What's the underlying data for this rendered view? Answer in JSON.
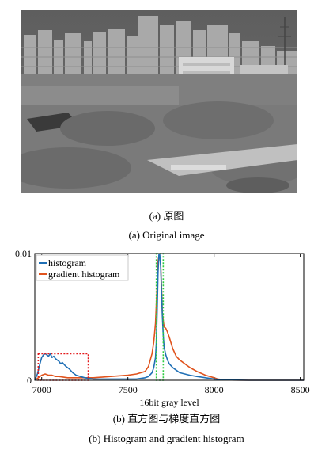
{
  "figure_a": {
    "caption_cn": "(a)  原图",
    "caption_en": "(a) Original image"
  },
  "figure_b": {
    "caption_cn": "(b)  直方图与梯度直方图",
    "caption_en": "(b) Histogram and gradient histogram"
  },
  "chart_data": {
    "type": "line",
    "title": "",
    "xlabel": "16bit gray level",
    "ylabel": "",
    "xlim": [
      6960,
      8520
    ],
    "ylim": [
      0,
      0.01
    ],
    "xticks": [
      "7000",
      "7500",
      "8000",
      "8500"
    ],
    "yticks": [
      "0",
      "0.01"
    ],
    "legend": {
      "placement": "top-left",
      "entries": [
        "histogram",
        "gradient histogram"
      ]
    },
    "colors": {
      "histogram": "#1f6fb5",
      "gradient histogram": "#e0531d",
      "box_red": "#e31a1c",
      "box_green": "#2ecc40"
    },
    "series": [
      {
        "name": "histogram",
        "x": [
          6960,
          6975,
          6990,
          7000,
          7010,
          7020,
          7030,
          7040,
          7050,
          7060,
          7070,
          7080,
          7090,
          7100,
          7110,
          7120,
          7140,
          7160,
          7180,
          7200,
          7250,
          7300,
          7400,
          7500,
          7550,
          7600,
          7620,
          7640,
          7650,
          7660,
          7665,
          7670,
          7675,
          7680,
          7685,
          7690,
          7695,
          7700,
          7705,
          7710,
          7720,
          7730,
          7740,
          7760,
          7780,
          7800,
          7830,
          7860,
          7900,
          7950,
          8000,
          8050,
          8100,
          8200,
          8300,
          8400,
          8520
        ],
        "values": [
          0,
          0.0005,
          0.0013,
          0.0018,
          0.002,
          0.0021,
          0.002,
          0.0019,
          0.0021,
          0.0018,
          0.0019,
          0.0017,
          0.0016,
          0.0015,
          0.0013,
          0.0014,
          0.0011,
          0.0009,
          0.0006,
          0.0004,
          0.0002,
          0.0001,
          0.0001,
          0.0001,
          0.0001,
          0.0002,
          0.0003,
          0.0006,
          0.001,
          0.0018,
          0.003,
          0.0055,
          0.0085,
          0.0099,
          0.0099,
          0.009,
          0.007,
          0.005,
          0.0035,
          0.0026,
          0.002,
          0.0016,
          0.0013,
          0.001,
          0.0008,
          0.0006,
          0.0005,
          0.0004,
          0.0003,
          0.0002,
          0.0001,
          5e-05,
          2e-05,
          0,
          0,
          0,
          0
        ]
      },
      {
        "name": "gradient histogram",
        "x": [
          6960,
          6980,
          7000,
          7020,
          7040,
          7060,
          7080,
          7100,
          7150,
          7200,
          7250,
          7300,
          7400,
          7500,
          7550,
          7600,
          7620,
          7640,
          7650,
          7660,
          7670,
          7675,
          7680,
          7685,
          7690,
          7695,
          7700,
          7710,
          7720,
          7730,
          7740,
          7760,
          7780,
          7800,
          7830,
          7860,
          7900,
          7950,
          8000,
          8020,
          8050,
          8100,
          8200,
          8300,
          8400,
          8520
        ],
        "values": [
          0,
          0.0002,
          0.0004,
          0.0005,
          0.0004,
          0.0004,
          0.0003,
          0.0003,
          0.0002,
          0.0002,
          0.0002,
          0.0002,
          0.0003,
          0.0004,
          0.0005,
          0.0007,
          0.0011,
          0.0021,
          0.003,
          0.0045,
          0.0075,
          0.0094,
          0.0098,
          0.0097,
          0.0092,
          0.0074,
          0.0052,
          0.0042,
          0.0041,
          0.0038,
          0.0034,
          0.0025,
          0.0019,
          0.0016,
          0.0013,
          0.001,
          0.0007,
          0.0004,
          0.0002,
          0.0001,
          5e-05,
          2e-05,
          0,
          0,
          0,
          0
        ]
      }
    ],
    "annotations": [
      {
        "type": "dashed-box",
        "color": "red",
        "x": [
          6980,
          7270
        ],
        "y": [
          0,
          0.0021
        ]
      },
      {
        "type": "dashed-box",
        "color": "green",
        "x": [
          7665,
          7705
        ],
        "y": [
          0,
          0.01
        ]
      }
    ]
  }
}
